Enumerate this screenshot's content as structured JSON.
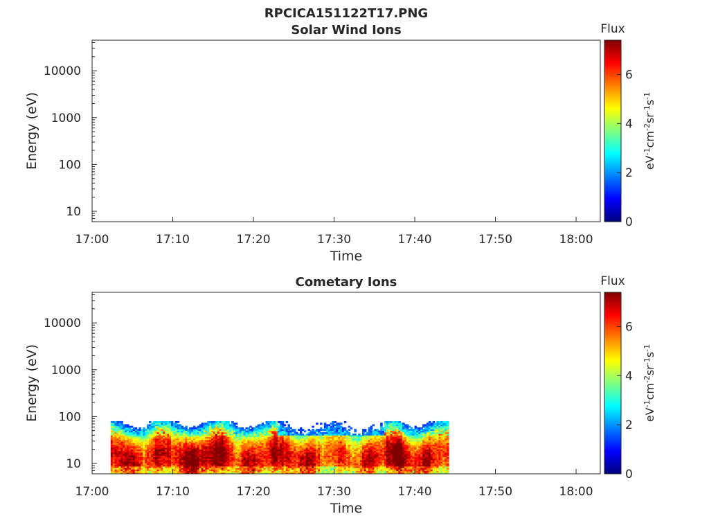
{
  "figure_title": "RPCICA151122T17.PNG",
  "colormap_stops": [
    "#00007f",
    "#0000ff",
    "#007fff",
    "#00ffff",
    "#7fff7f",
    "#ffff00",
    "#ff7f00",
    "#ff0000",
    "#7f0000"
  ],
  "chart_data": [
    {
      "type": "heatmap",
      "title": "Solar Wind Ions",
      "xlabel": "Time",
      "ylabel": "Energy (eV)",
      "x_tick_labels": [
        "17:00",
        "17:10",
        "17:20",
        "17:30",
        "17:40",
        "17:50",
        "18:00"
      ],
      "x_tick_minutes": [
        0,
        10,
        20,
        30,
        40,
        50,
        60
      ],
      "xlim_minutes": [
        0,
        63
      ],
      "y_scale": "log",
      "y_tick_labels": [
        "10",
        "100",
        "1000",
        "10000"
      ],
      "y_tick_values": [
        10,
        100,
        1000,
        10000
      ],
      "ylim": [
        6,
        45000
      ],
      "colorbar": {
        "label": "Flux",
        "unit_text": "eV-1cm-2sr-1s-1",
        "ticks": [
          "0",
          "2",
          "4",
          "6"
        ],
        "tick_values": [
          0,
          2,
          4,
          6
        ],
        "range": [
          0,
          7.4
        ]
      },
      "data_present": false
    },
    {
      "type": "heatmap",
      "title": "Cometary Ions",
      "xlabel": "Time",
      "ylabel": "Energy (eV)",
      "x_tick_labels": [
        "17:00",
        "17:10",
        "17:20",
        "17:30",
        "17:40",
        "17:50",
        "18:00"
      ],
      "x_tick_minutes": [
        0,
        10,
        20,
        30,
        40,
        50,
        60
      ],
      "xlim_minutes": [
        0,
        63
      ],
      "y_scale": "log",
      "y_tick_labels": [
        "10",
        "100",
        "1000",
        "10000"
      ],
      "y_tick_values": [
        10,
        100,
        1000,
        10000
      ],
      "ylim": [
        6,
        45000
      ],
      "colorbar": {
        "label": "Flux",
        "unit_text": "eV-1cm-2sr-1s-1",
        "ticks": [
          "0",
          "2",
          "4",
          "6"
        ],
        "tick_values": [
          0,
          2,
          4,
          6
        ],
        "range": [
          0,
          7.4
        ]
      },
      "data_present": true,
      "data_time_range_minutes": [
        2.3,
        44.2
      ],
      "data_energy_range": [
        6,
        80
      ]
    }
  ]
}
